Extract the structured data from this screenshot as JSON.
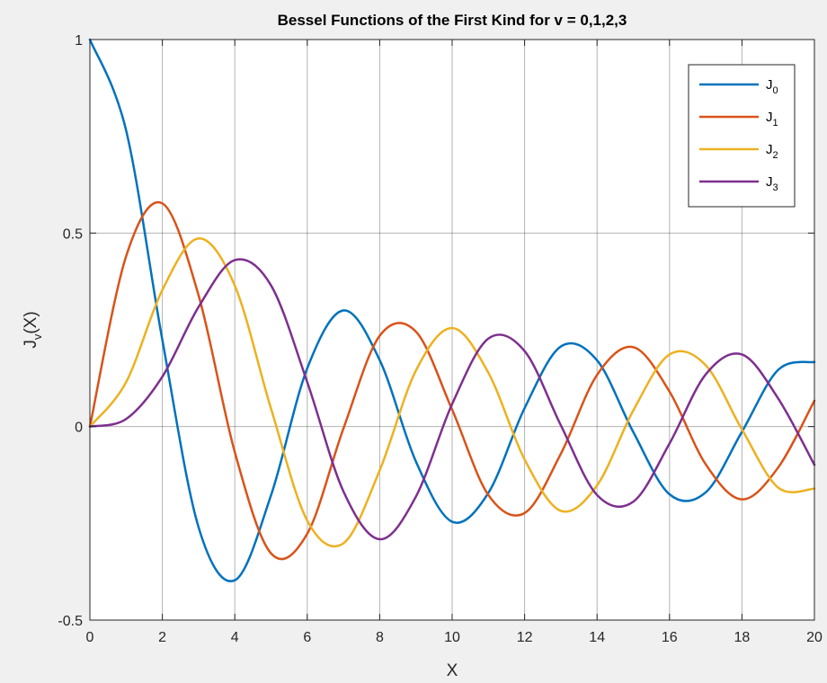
{
  "chart_data": {
    "type": "line",
    "title": "Bessel Functions of the First Kind for v = 0,1,2,3",
    "xlabel": "X",
    "ylabel": {
      "main": "J",
      "subscript": "v",
      "suffix": "(X)"
    },
    "xlim": [
      0,
      20
    ],
    "ylim": [
      -0.5,
      1
    ],
    "xticks": [
      0,
      2,
      4,
      6,
      8,
      10,
      12,
      14,
      16,
      18,
      20
    ],
    "xtick_labels": [
      "0",
      "2",
      "4",
      "6",
      "8",
      "10",
      "12",
      "14",
      "16",
      "18",
      "20"
    ],
    "yticks": [
      -0.5,
      0,
      0.5,
      1
    ],
    "ytick_labels": [
      "-0.5",
      "0",
      "0.5",
      "1"
    ],
    "grid": true,
    "legend_position": "top-right",
    "x": [
      0,
      1,
      2,
      3,
      4,
      5,
      6,
      7,
      8,
      9,
      10,
      11,
      12,
      13,
      14,
      15,
      16,
      17,
      18,
      19,
      20
    ],
    "series": [
      {
        "name": "J",
        "subscript": "0",
        "color": "#0072bd",
        "values": [
          1.0,
          0.7652,
          0.2239,
          -0.2601,
          -0.3971,
          -0.1776,
          0.1506,
          0.3001,
          0.1717,
          -0.0903,
          -0.2459,
          -0.1712,
          0.0477,
          0.2069,
          0.1711,
          -0.0142,
          -0.1749,
          -0.1699,
          -0.0134,
          0.1466,
          0.167
        ]
      },
      {
        "name": "J",
        "subscript": "1",
        "color": "#d95319",
        "values": [
          0.0,
          0.4401,
          0.5767,
          0.3391,
          -0.066,
          -0.3276,
          -0.2767,
          -0.0047,
          0.2346,
          0.2453,
          0.0435,
          -0.1768,
          -0.2234,
          -0.0703,
          0.1334,
          0.2051,
          0.0904,
          -0.0977,
          -0.188,
          -0.1057,
          0.0668
        ]
      },
      {
        "name": "J",
        "subscript": "2",
        "color": "#edb120",
        "values": [
          0.0,
          0.1149,
          0.3528,
          0.4861,
          0.3641,
          0.0466,
          -0.2429,
          -0.3014,
          -0.113,
          0.1448,
          0.2546,
          0.139,
          -0.0849,
          -0.2177,
          -0.152,
          0.0415,
          0.1862,
          0.1584,
          -0.0075,
          -0.1578,
          -0.1603
        ]
      },
      {
        "name": "J",
        "subscript": "3",
        "color": "#7e2f8e",
        "values": [
          0.0,
          0.0196,
          0.1289,
          0.3091,
          0.4302,
          0.3648,
          0.1148,
          -0.1676,
          -0.2911,
          -0.1809,
          0.0584,
          0.2273,
          0.1951,
          0.0033,
          -0.1768,
          -0.194,
          -0.0438,
          0.1349,
          0.1862,
          0.0725,
          -0.0989
        ]
      }
    ]
  }
}
